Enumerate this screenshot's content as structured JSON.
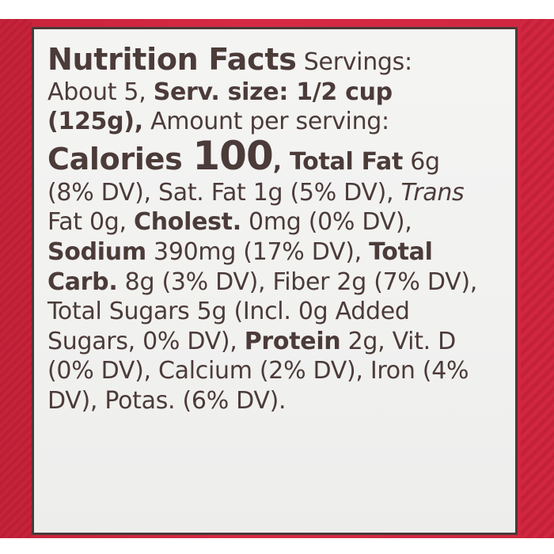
{
  "label": {
    "title": "Nutrition Facts",
    "servings": "Servings: About 5,",
    "serv_size_label": "Serv. size:",
    "serv_size_value": "1/2 cup (125g),",
    "amount_per_serving": "Amount per serving:",
    "calories_label": "Calories",
    "calories_value": "100",
    "nutrients": [
      {
        "name": "Total Fat",
        "amount": "6g",
        "dv": "(8% DV)"
      },
      {
        "name": "Sat. Fat",
        "amount": "1g",
        "dv": "(5% DV)"
      },
      {
        "name": "Trans Fat",
        "amount": "0g",
        "dv": ""
      },
      {
        "name": "Cholest.",
        "amount": "0mg",
        "dv": "(0% DV)"
      },
      {
        "name": "Sodium",
        "amount": "390mg",
        "dv": "(17% DV)"
      },
      {
        "name": "Total Carb.",
        "amount": "8g",
        "dv": "(3% DV)"
      },
      {
        "name": "Fiber",
        "amount": "2g",
        "dv": "(7% DV)"
      },
      {
        "name": "Total Sugars",
        "amount": "5g",
        "dv": "(Incl. 0g Added Sugars, 0% DV)"
      },
      {
        "name": "Protein",
        "amount": "2g",
        "dv": ""
      },
      {
        "name": "Vit. D",
        "amount": "",
        "dv": "(0% DV)"
      },
      {
        "name": "Calcium",
        "amount": "",
        "dv": "(2% DV)"
      },
      {
        "name": "Iron",
        "amount": "",
        "dv": "(4% DV)"
      },
      {
        "name": "Potas.",
        "amount": "",
        "dv": "(6% DV)"
      }
    ]
  },
  "text": {
    "l1_title": "Nutrition Facts",
    "l1_rest": " Servings:",
    "l2_a": "About 5, ",
    "l2_b": "Serv. size: 1/2 cup",
    "l3_a": "(125g),",
    "l3_b": " Amount per serving:",
    "l4_a": "Calories ",
    "l4_b": "100",
    "l4_c": ", Total Fat",
    "l4_d": " 6g",
    "l5_a": "(8% DV), Sat. Fat 1g (5% DV), ",
    "l5_b": "Trans",
    "l6_a": "Fat 0g, ",
    "l6_b": "Cholest.",
    "l6_c": " 0mg (0% DV),",
    "l7_a": "Sodium",
    "l7_b": " 390mg (17% DV), ",
    "l7_c": "Total",
    "l8_a": "Carb.",
    "l8_b": " 8g (3% DV), Fiber 2g (7% DV),",
    "l9": "Total Sugars 5g (Incl. 0g Added",
    "l10_a": "Sugars, 0% DV), ",
    "l10_b": "Protein",
    "l10_c": " 2g, Vit. D",
    "l11": "(0% DV), Calcium (2% DV), Iron (4%",
    "l12": "DV), Potas. (6% DV)."
  },
  "colors": {
    "package_red": "#cf2740",
    "label_background": "#f2f2f1",
    "text": "#4b3b39",
    "border": "#4a3a38"
  }
}
